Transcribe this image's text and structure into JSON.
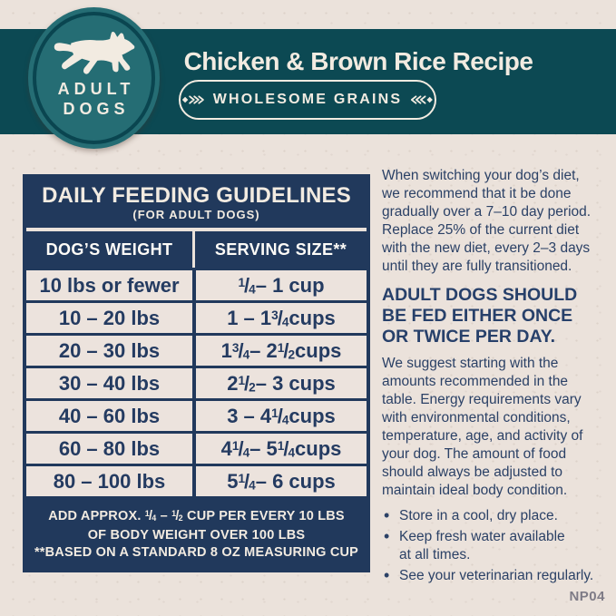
{
  "colors": {
    "background": "#ebe2db",
    "band_teal": "#0c4953",
    "logo_teal": "#256d74",
    "logo_ring": "#0a4550",
    "navy": "#21395c",
    "cream": "#f2ebe1",
    "body_text_navy": "#2b4166",
    "code_gray": "#7e7b86"
  },
  "header": {
    "logo_line1": "ADULT",
    "logo_line2": "DOGS",
    "title": "Chicken & Brown Rice Recipe",
    "grains_badge": "WHOLESOME GRAINS"
  },
  "feeding_table": {
    "title": "DAILY FEEDING GUIDELINES",
    "subtitle": "(FOR ADULT DOGS)",
    "columns": {
      "weight": "DOG’S WEIGHT",
      "serving": "SERVING SIZE**"
    },
    "rows": [
      {
        "weight": "10 lbs or fewer",
        "serving": "1/4 – 1 cup"
      },
      {
        "weight": "10 – 20 lbs",
        "serving": "1 – 1 3/4 cups"
      },
      {
        "weight": "20 – 30 lbs",
        "serving": "1 3/4 – 2 1/2 cups"
      },
      {
        "weight": "30 – 40 lbs",
        "serving": "2 1/2 – 3 cups"
      },
      {
        "weight": "40 – 60 lbs",
        "serving": "3 – 4 1/4 cups"
      },
      {
        "weight": "60 – 80 lbs",
        "serving": "4 1/4 – 5 1/4 cups"
      },
      {
        "weight": "80 – 100 lbs",
        "serving": "5 1/4 – 6 cups"
      }
    ],
    "footnote_line1": "ADD APPROX. 1/4 – 1/2 CUP PER EVERY 10 LBS",
    "footnote_line2": "OF BODY WEIGHT OVER 100 LBS",
    "footnote_line3": "**BASED ON A STANDARD 8 OZ MEASURING CUP"
  },
  "info": {
    "para1": "When switching your dog’s diet,\nwe recommend that it be done\ngradually over a 7–10 day period.\nReplace 25% of the current diet\nwith the new diet, every 2–3 days\nuntil they are fully transitioned.",
    "heading": "ADULT DOGS SHOULD\nBE FED EITHER ONCE\nOR TWICE PER DAY.",
    "para2": "We suggest starting with the\namounts recommended in the\ntable. Energy requirements vary\nwith environmental conditions,\ntemperature, age, and activity of\nyour dog. The amount of food\nshould always be adjusted to\nmaintain ideal body condition.",
    "bullets": [
      "Store in a cool, dry place.",
      "Keep fresh water available\nat all times.",
      "See your veterinarian regularly."
    ]
  },
  "footer_code": "NP04"
}
